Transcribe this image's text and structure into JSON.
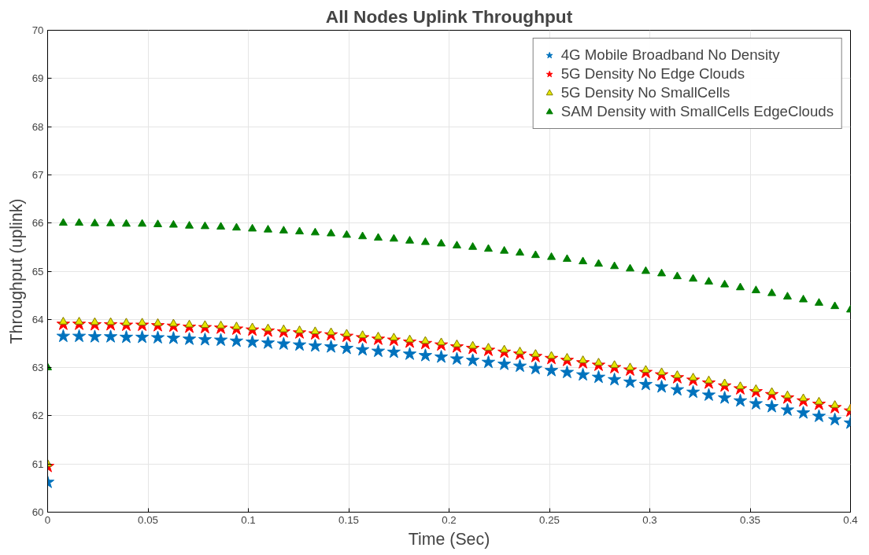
{
  "chart_data": {
    "type": "scatter",
    "title": "All Nodes Uplink Throughput",
    "xlabel": "Time (Sec)",
    "ylabel": "Throughput (uplink)",
    "x": [
      0,
      0.0078,
      0.0157,
      0.0235,
      0.0314,
      0.0392,
      0.0471,
      0.0549,
      0.0627,
      0.0706,
      0.0784,
      0.0863,
      0.0941,
      0.102,
      0.1098,
      0.1176,
      0.1255,
      0.1333,
      0.1412,
      0.149,
      0.1569,
      0.1647,
      0.1725,
      0.1804,
      0.1882,
      0.1961,
      0.2039,
      0.2118,
      0.2196,
      0.2275,
      0.2353,
      0.2431,
      0.251,
      0.2588,
      0.2667,
      0.2745,
      0.2824,
      0.2902,
      0.298,
      0.3059,
      0.3137,
      0.3216,
      0.3294,
      0.3373,
      0.3451,
      0.3529,
      0.3608,
      0.3686,
      0.3765,
      0.3843,
      0.3922,
      0.4
    ],
    "series": [
      {
        "name": "4G Mobile Broadband No Density",
        "color": "#0072bd",
        "marker": "star",
        "values": [
          60.62,
          63.65,
          63.65,
          63.64,
          63.64,
          63.63,
          63.63,
          63.62,
          63.61,
          63.59,
          63.58,
          63.57,
          63.55,
          63.53,
          63.51,
          63.49,
          63.47,
          63.45,
          63.43,
          63.4,
          63.37,
          63.34,
          63.32,
          63.28,
          63.25,
          63.22,
          63.18,
          63.15,
          63.11,
          63.07,
          63.03,
          62.98,
          62.94,
          62.9,
          62.85,
          62.8,
          62.75,
          62.7,
          62.65,
          62.6,
          62.54,
          62.49,
          62.43,
          62.37,
          62.31,
          62.25,
          62.19,
          62.12,
          62.06,
          61.99,
          61.92,
          61.85
        ]
      },
      {
        "name": "5G Density No Edge Clouds",
        "color": "#ff0000",
        "marker": "star",
        "values": [
          60.95,
          63.9,
          63.9,
          63.89,
          63.89,
          63.88,
          63.88,
          63.87,
          63.86,
          63.84,
          63.83,
          63.82,
          63.8,
          63.78,
          63.76,
          63.74,
          63.72,
          63.7,
          63.68,
          63.65,
          63.62,
          63.59,
          63.57,
          63.53,
          63.5,
          63.47,
          63.43,
          63.4,
          63.36,
          63.32,
          63.28,
          63.23,
          63.19,
          63.15,
          63.1,
          63.05,
          63.0,
          62.95,
          62.9,
          62.85,
          62.79,
          62.74,
          62.68,
          62.62,
          62.56,
          62.5,
          62.44,
          62.37,
          62.31,
          62.24,
          62.17,
          62.1
        ]
      },
      {
        "name": "5G Density No SmallCells",
        "color": "#e6e600",
        "marker": "triangle",
        "values": [
          61.0,
          63.95,
          63.95,
          63.94,
          63.94,
          63.93,
          63.93,
          63.92,
          63.91,
          63.89,
          63.88,
          63.87,
          63.85,
          63.83,
          63.81,
          63.79,
          63.77,
          63.75,
          63.73,
          63.7,
          63.67,
          63.64,
          63.62,
          63.58,
          63.55,
          63.52,
          63.48,
          63.45,
          63.41,
          63.37,
          63.33,
          63.28,
          63.24,
          63.2,
          63.15,
          63.1,
          63.05,
          63.0,
          62.95,
          62.9,
          62.84,
          62.79,
          62.73,
          62.67,
          62.61,
          62.55,
          62.49,
          62.42,
          62.36,
          62.29,
          62.22,
          62.15
        ]
      },
      {
        "name": "SAM Density with SmallCells EdgeClouds",
        "color": "#008000",
        "marker": "triangle",
        "values": [
          63.0,
          66.0,
          66.0,
          65.99,
          65.99,
          65.98,
          65.98,
          65.97,
          65.96,
          65.94,
          65.93,
          65.92,
          65.9,
          65.88,
          65.86,
          65.84,
          65.82,
          65.8,
          65.78,
          65.75,
          65.72,
          65.69,
          65.67,
          65.63,
          65.6,
          65.57,
          65.53,
          65.5,
          65.46,
          65.42,
          65.38,
          65.33,
          65.29,
          65.25,
          65.2,
          65.15,
          65.1,
          65.05,
          65.0,
          64.95,
          64.89,
          64.84,
          64.78,
          64.72,
          64.66,
          64.6,
          64.54,
          64.47,
          64.41,
          64.34,
          64.27,
          64.2
        ]
      }
    ],
    "xlim": [
      0,
      0.4
    ],
    "xticks": [
      0,
      0.05,
      0.1,
      0.15,
      0.2,
      0.25,
      0.3,
      0.35,
      0.4
    ],
    "ylim": [
      60,
      70
    ],
    "yticks": [
      60,
      61,
      62,
      63,
      64,
      65,
      66,
      67,
      68,
      69,
      70
    ],
    "grid": true,
    "legend": "top right"
  }
}
